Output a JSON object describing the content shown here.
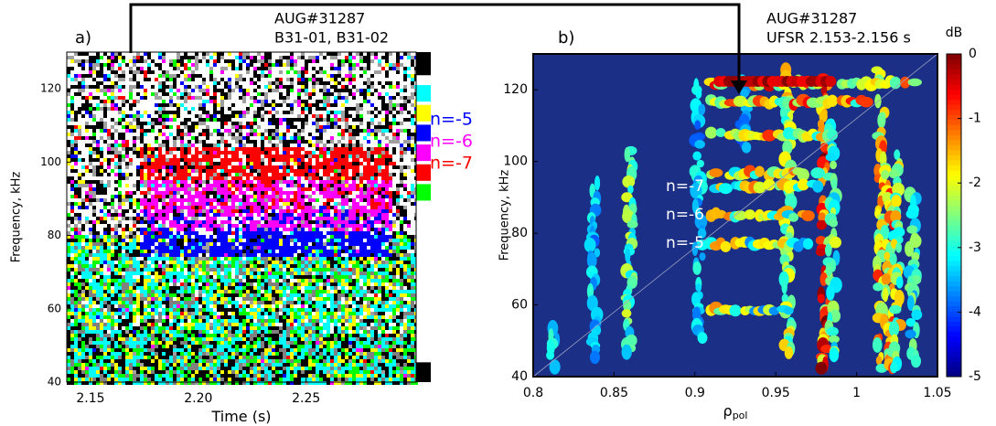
{
  "chart_data": [
    {
      "type": "spectrogram",
      "panel_label": "a)",
      "title": [
        "AUG#31287",
        "B31-01, B31-02"
      ],
      "xlabel": "Time (s)",
      "ylabel": "Frequency, kHz",
      "xlim": [
        2.139,
        2.301
      ],
      "xticks": [
        2.15,
        {
          "value": 2.2,
          "label": "2.20"
        },
        2.25
      ],
      "ylim": [
        40,
        130
      ],
      "yticks": [
        40,
        60,
        80,
        100,
        120
      ],
      "series": [
        {
          "name": "n=-5",
          "color": "#0000ff"
        },
        {
          "name": "n=-6",
          "color": "#ff00ff"
        },
        {
          "name": "n=-7",
          "color": "#ff0000"
        }
      ]
    },
    {
      "type": "spectrogram",
      "panel_label": "b)",
      "title": [
        "AUG#31287",
        "UFSR 2.153-2.156 s"
      ],
      "xlabel": "ρ",
      "xlabel_subscript": "pol",
      "ylabel": "Frequency, kHz",
      "xlim": [
        0.8,
        1.05
      ],
      "xticks": [
        0.8,
        0.85,
        0.9,
        0.95,
        1,
        1.05
      ],
      "ylim": [
        40,
        130
      ],
      "yticks": [
        40,
        60,
        80,
        100,
        120
      ],
      "annotations": [
        "n=-7",
        "n=-6",
        "n=-5"
      ],
      "colorbar": {
        "label": "dB",
        "lim": [
          -5,
          0
        ],
        "ticks": [
          0,
          -1,
          -2,
          -3,
          -4,
          -5
        ]
      }
    }
  ]
}
